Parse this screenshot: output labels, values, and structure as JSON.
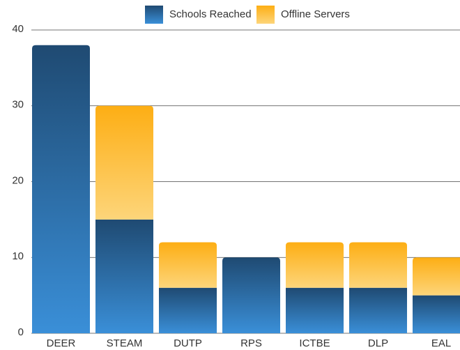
{
  "chart_data": {
    "type": "stacked_bar",
    "categories": [
      "DEER",
      "STEAM",
      "DUTP",
      "RPS",
      "ICTBE",
      "DLP",
      "EAL"
    ],
    "series": [
      {
        "name": "Schools Reached",
        "color": [
          "#1f4a72",
          "#3a8fd8"
        ],
        "values": [
          38,
          15,
          6,
          10,
          6,
          6,
          5
        ]
      },
      {
        "name": "Offline Servers",
        "color": [
          "#fdae14",
          "#fdd57a"
        ],
        "values": [
          0,
          15,
          6,
          0,
          6,
          6,
          5
        ]
      }
    ],
    "ylim": [
      0,
      40
    ],
    "yticks": [
      0,
      10,
      20,
      30,
      40
    ],
    "grid": true,
    "legend": "top"
  }
}
